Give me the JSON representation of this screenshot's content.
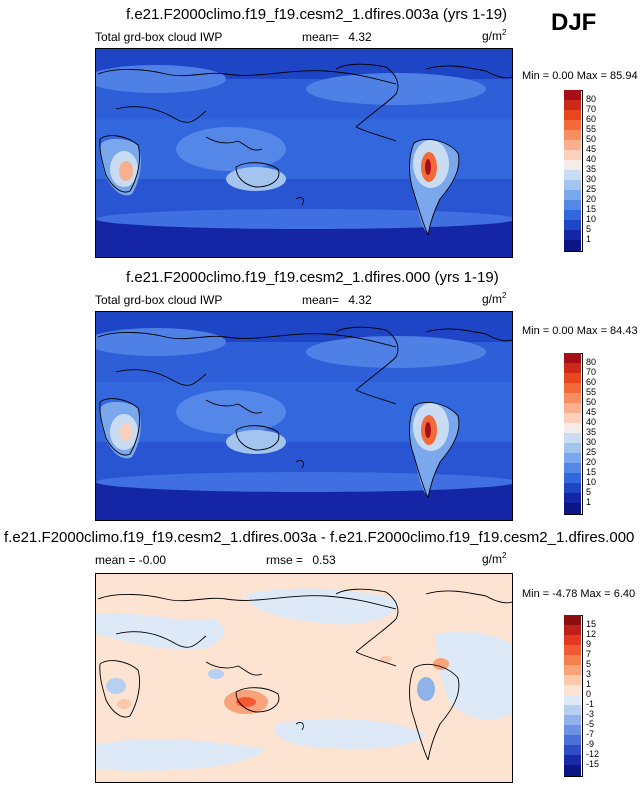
{
  "season": "DJF",
  "units_base": "g/m",
  "units_exp": "2",
  "panels": [
    {
      "title": "f.e21.F2000climo.f19_f19.cesm2_1.dfires.003a (yrs 1-19)",
      "left_label": "Total grd-box cloud IWP",
      "stat_label": "mean=",
      "stat_value": "4.32",
      "minmax": "Min =   0.00 Max =  85.94"
    },
    {
      "title": "f.e21.F2000climo.f19_f19.cesm2_1.dfires.000 (yrs 1-19)",
      "left_label": "Total grd-box cloud IWP",
      "stat_label": "mean=",
      "stat_value": "4.32",
      "minmax": "Min =   0.00 Max =  84.43"
    },
    {
      "title": "f.e21.F2000climo.f19_f19.cesm2_1.dfires.003a - f.e21.F2000climo.f19_f19.cesm2_1.dfires.000",
      "left_label": "mean =  -0.00",
      "stat_label": "rmse =",
      "stat_value": "0.53",
      "minmax": "Min =  -4.78 Max =   6.40"
    }
  ],
  "chart_data": [
    {
      "type": "heatmap",
      "title": "f.e21.F2000climo.f19_f19.cesm2_1.dfires.003a (yrs 1-19)",
      "variable": "Total grd-box cloud IWP",
      "units": "g/m2",
      "mean": 4.32,
      "min": 0.0,
      "max": 85.94,
      "colorbar_levels": [
        "80",
        "70",
        "60",
        "55",
        "50",
        "45",
        "40",
        "35",
        "30",
        "25",
        "20",
        "15",
        "10",
        "5",
        "1"
      ],
      "colorbar_colors": [
        "#a50f15",
        "#cb2a1a",
        "#e8461f",
        "#f26a3a",
        "#f78e62",
        "#f9b08f",
        "#fbd1bd",
        "#f3ece8",
        "#c9dcf2",
        "#a3c4ef",
        "#7ba7ec",
        "#5587e8",
        "#3367de",
        "#1f45c7",
        "#1426a6",
        "#0b1684"
      ]
    },
    {
      "type": "heatmap",
      "title": "f.e21.F2000climo.f19_f19.cesm2_1.dfires.000 (yrs 1-19)",
      "variable": "Total grd-box cloud IWP",
      "units": "g/m2",
      "mean": 4.32,
      "min": 0.0,
      "max": 84.43,
      "colorbar_levels": [
        "80",
        "70",
        "60",
        "55",
        "50",
        "45",
        "40",
        "35",
        "30",
        "25",
        "20",
        "15",
        "10",
        "5",
        "1"
      ],
      "colorbar_colors": [
        "#a50f15",
        "#cb2a1a",
        "#e8461f",
        "#f26a3a",
        "#f78e62",
        "#f9b08f",
        "#fbd1bd",
        "#f3ece8",
        "#c9dcf2",
        "#a3c4ef",
        "#7ba7ec",
        "#5587e8",
        "#3367de",
        "#1f45c7",
        "#1426a6",
        "#0b1684"
      ]
    },
    {
      "type": "heatmap",
      "title": "f.e21.F2000climo.f19_f19.cesm2_1.dfires.003a - f.e21.F2000climo.f19_f19.cesm2_1.dfires.000",
      "units": "g/m2",
      "mean": -0.0,
      "rmse": 0.53,
      "min": -4.78,
      "max": 6.4,
      "colorbar_levels": [
        "15",
        "12",
        "9",
        "7",
        "5",
        "3",
        "1",
        "0",
        "-1",
        "-3",
        "-5",
        "-7",
        "-9",
        "-12",
        "-15"
      ],
      "colorbar_colors": [
        "#8b0f0f",
        "#bf1f1a",
        "#e13a20",
        "#f25a33",
        "#f7804f",
        "#f9a37a",
        "#fbc8aa",
        "#fde3d2",
        "#dde9f7",
        "#b7cff0",
        "#8fb2ea",
        "#6d92e3",
        "#4c70d8",
        "#2e4cc5",
        "#1a2aa6",
        "#0c1585"
      ]
    }
  ]
}
